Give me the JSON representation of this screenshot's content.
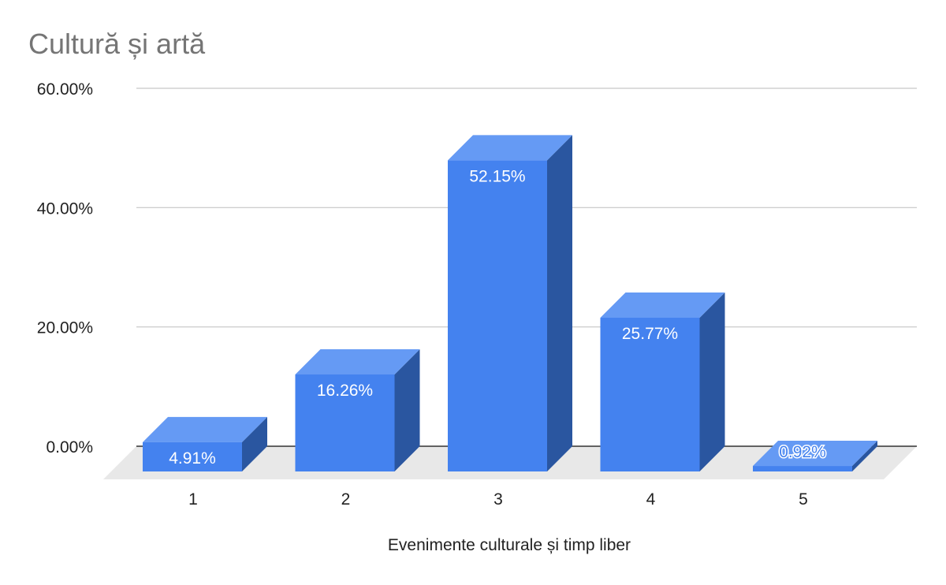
{
  "chart_data": {
    "type": "bar",
    "title": "Cultură și artă",
    "xlabel": "Evenimente culturale și timp liber",
    "ylabel": "",
    "categories": [
      "1",
      "2",
      "3",
      "4",
      "5"
    ],
    "values": [
      4.91,
      16.26,
      52.15,
      25.77,
      0.92
    ],
    "data_labels": [
      "4.91%",
      "16.26%",
      "52.15%",
      "25.77%",
      "0.92%"
    ],
    "y_ticks": [
      {
        "value": 0,
        "label": "0.00%"
      },
      {
        "value": 20,
        "label": "20.00%"
      },
      {
        "value": 40,
        "label": "40.00%"
      },
      {
        "value": 60,
        "label": "60.00%"
      }
    ],
    "ylim": [
      0,
      60
    ],
    "grid": true,
    "legend": "none",
    "style": "3d-column",
    "colors": {
      "bar_front": "#4482ef",
      "bar_top": "#659af4",
      "bar_side": "#2a56a0",
      "floor": "#e8e8e8",
      "gridline": "#c6c6c6",
      "baseline": "#333333",
      "label_on_bar": "#ffffff",
      "label_above_bar": "#4482ef"
    }
  }
}
